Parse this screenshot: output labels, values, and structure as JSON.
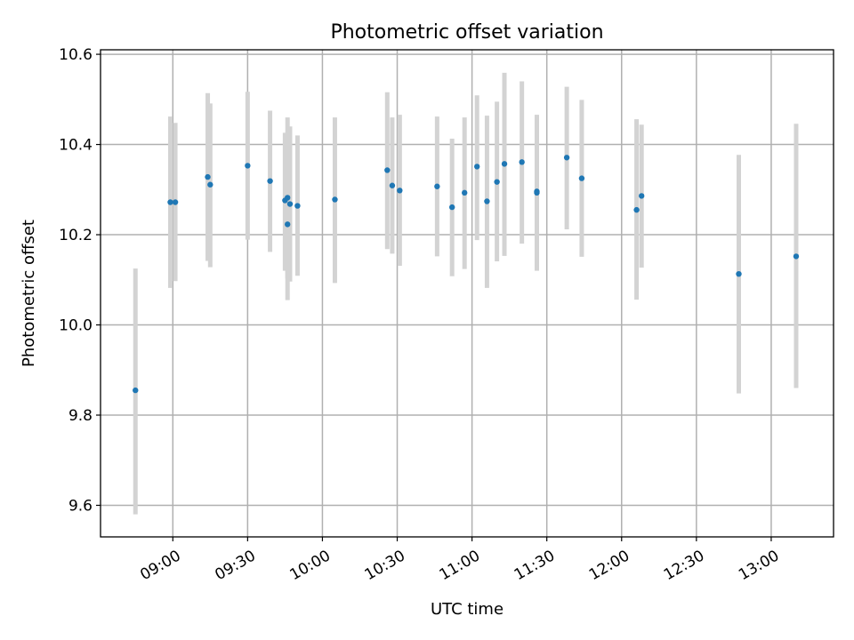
{
  "chart_data": {
    "type": "scatter",
    "title": "Photometric offset variation",
    "xlabel": "UTC time",
    "ylabel": "Photometric offset",
    "xlim": [
      "08:31",
      "13:25"
    ],
    "ylim": [
      9.53,
      10.61
    ],
    "xticks": [
      "09:00",
      "09:30",
      "10:00",
      "10:30",
      "11:00",
      "11:30",
      "12:00",
      "12:30",
      "13:00"
    ],
    "yticks": [
      9.6,
      9.8,
      10.0,
      10.2,
      10.4,
      10.6
    ],
    "ytick_labels": [
      "9.6",
      "9.8",
      "10.0",
      "10.2",
      "10.4",
      "10.6"
    ],
    "grid": true,
    "marker_color": "#1f77b4",
    "errorbar_color": "#d3d3d3",
    "points": [
      {
        "x": "08:45",
        "y": 9.855,
        "lo": 9.58,
        "hi": 10.125
      },
      {
        "x": "08:59",
        "y": 10.272,
        "lo": 10.082,
        "hi": 10.462
      },
      {
        "x": "09:01",
        "y": 10.272,
        "lo": 10.097,
        "hi": 10.448
      },
      {
        "x": "09:14",
        "y": 10.328,
        "lo": 10.142,
        "hi": 10.514
      },
      {
        "x": "09:15",
        "y": 10.311,
        "lo": 10.128,
        "hi": 10.491
      },
      {
        "x": "09:30",
        "y": 10.353,
        "lo": 10.189,
        "hi": 10.517
      },
      {
        "x": "09:39",
        "y": 10.319,
        "lo": 10.162,
        "hi": 10.475
      },
      {
        "x": "09:45",
        "y": 10.276,
        "lo": 10.12,
        "hi": 10.426
      },
      {
        "x": "09:46",
        "y": 10.282,
        "lo": 10.103,
        "hi": 10.46
      },
      {
        "x": "09:46",
        "y": 10.223,
        "lo": 10.055,
        "hi": 10.39
      },
      {
        "x": "09:47",
        "y": 10.268,
        "lo": 10.096,
        "hi": 10.44
      },
      {
        "x": "09:50",
        "y": 10.264,
        "lo": 10.109,
        "hi": 10.42
      },
      {
        "x": "10:05",
        "y": 10.278,
        "lo": 10.093,
        "hi": 10.46
      },
      {
        "x": "10:26",
        "y": 10.343,
        "lo": 10.168,
        "hi": 10.516
      },
      {
        "x": "10:28",
        "y": 10.309,
        "lo": 10.158,
        "hi": 10.46
      },
      {
        "x": "10:31",
        "y": 10.298,
        "lo": 10.131,
        "hi": 10.466
      },
      {
        "x": "10:46",
        "y": 10.307,
        "lo": 10.152,
        "hi": 10.462
      },
      {
        "x": "10:52",
        "y": 10.261,
        "lo": 10.108,
        "hi": 10.413
      },
      {
        "x": "10:57",
        "y": 10.293,
        "lo": 10.124,
        "hi": 10.46
      },
      {
        "x": "11:02",
        "y": 10.351,
        "lo": 10.188,
        "hi": 10.509
      },
      {
        "x": "11:06",
        "y": 10.274,
        "lo": 10.082,
        "hi": 10.464
      },
      {
        "x": "11:10",
        "y": 10.317,
        "lo": 10.141,
        "hi": 10.495
      },
      {
        "x": "11:13",
        "y": 10.357,
        "lo": 10.153,
        "hi": 10.559
      },
      {
        "x": "11:20",
        "y": 10.361,
        "lo": 10.18,
        "hi": 10.54
      },
      {
        "x": "11:26",
        "y": 10.296,
        "lo": 10.122,
        "hi": 10.466
      },
      {
        "x": "11:26",
        "y": 10.293,
        "lo": 10.12,
        "hi": 10.464
      },
      {
        "x": "11:38",
        "y": 10.371,
        "lo": 10.212,
        "hi": 10.528
      },
      {
        "x": "11:44",
        "y": 10.325,
        "lo": 10.151,
        "hi": 10.499
      },
      {
        "x": "12:06",
        "y": 10.255,
        "lo": 10.056,
        "hi": 10.456
      },
      {
        "x": "12:08",
        "y": 10.286,
        "lo": 10.127,
        "hi": 10.444
      },
      {
        "x": "12:47",
        "y": 10.113,
        "lo": 9.848,
        "hi": 10.377
      },
      {
        "x": "13:10",
        "y": 10.152,
        "lo": 9.86,
        "hi": 10.446
      }
    ]
  }
}
